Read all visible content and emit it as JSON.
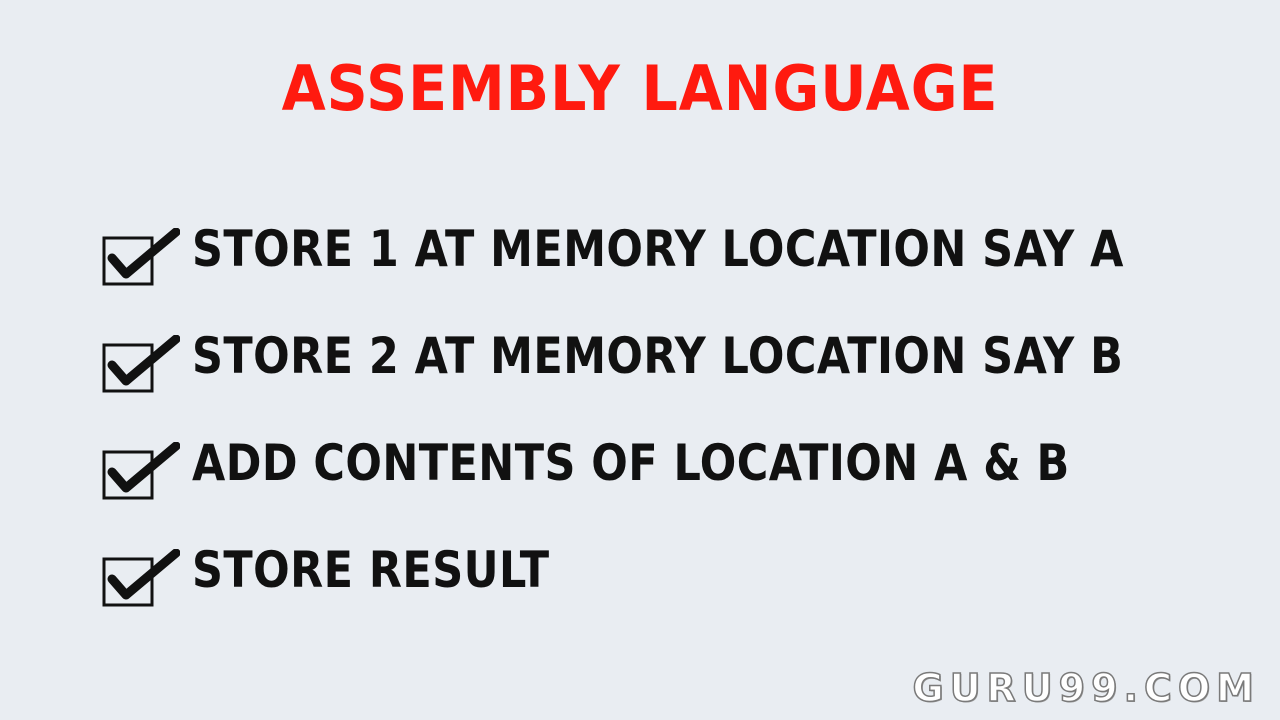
{
  "slide": {
    "title": "ASSEMBLY LANGUAGE",
    "title_color": "#ff1a0f",
    "background_color": "#e9edf2",
    "items": [
      {
        "text": "STORE 1 AT MEMORY LOCATION SAY A",
        "icon": "checked-box-icon"
      },
      {
        "text": "STORE 2 AT MEMORY LOCATION SAY B",
        "icon": "checked-box-icon"
      },
      {
        "text": "ADD CONTENTS OF LOCATION A & B",
        "icon": "checked-box-icon"
      },
      {
        "text": "STORE RESULT",
        "icon": "checked-box-icon"
      }
    ],
    "watermark": "GURU99.COM"
  }
}
